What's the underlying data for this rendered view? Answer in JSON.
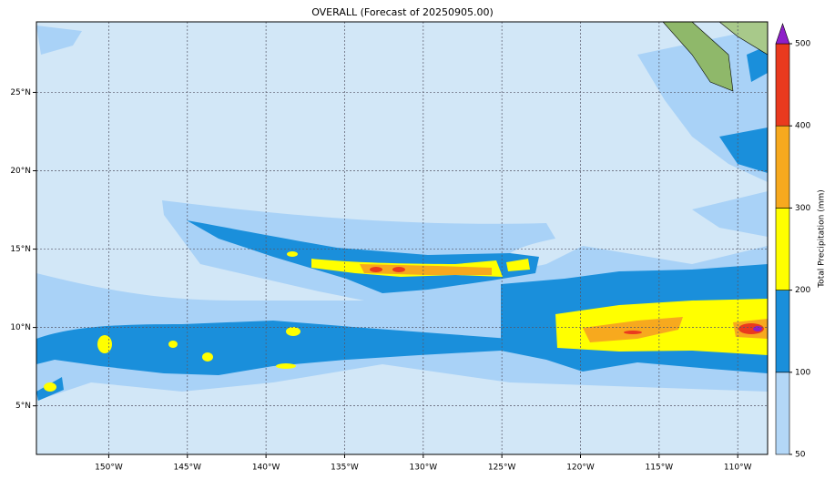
{
  "map": {
    "title": "OVERALL (Forecast of 20250905.00)",
    "xlim": [
      -154.6,
      -108.1
    ],
    "ylim": [
      1.9,
      29.5
    ],
    "xticks": [
      {
        "value": -150,
        "label": "150°W"
      },
      {
        "value": -145,
        "label": "145°W"
      },
      {
        "value": -140,
        "label": "140°W"
      },
      {
        "value": -135,
        "label": "135°W"
      },
      {
        "value": -130,
        "label": "130°W"
      },
      {
        "value": -125,
        "label": "125°W"
      },
      {
        "value": -120,
        "label": "120°W"
      },
      {
        "value": -115,
        "label": "115°W"
      },
      {
        "value": -110,
        "label": "110°W"
      }
    ],
    "yticks": [
      {
        "value": 5,
        "label": "5°N"
      },
      {
        "value": 10,
        "label": "10°N"
      },
      {
        "value": 15,
        "label": "15°N"
      },
      {
        "value": 20,
        "label": "20°N"
      },
      {
        "value": 25,
        "label": "25°N"
      }
    ],
    "colorbar": {
      "label": "Total Precipitation (mm)",
      "ticks": [
        50,
        100,
        200,
        300,
        400,
        500
      ],
      "colors": [
        "#b3d7f7",
        "#1a8fdb",
        "#ffff00",
        "#f7a91e",
        "#ea3a1e"
      ],
      "extend_color": "#8e1fc9"
    }
  }
}
